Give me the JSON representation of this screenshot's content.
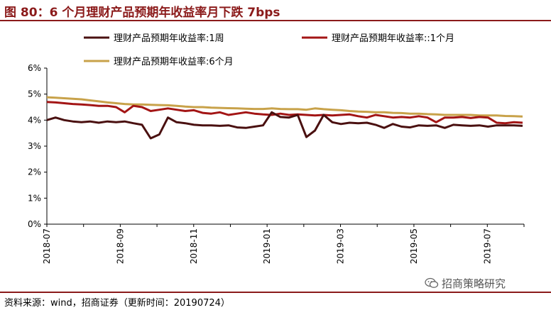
{
  "header": {
    "title": "图 80：6 个月理财产品预期年收益率月下跌 7bps"
  },
  "footer": {
    "source": "资料来源：wind，招商证券（更新时间：20190724）"
  },
  "watermark": {
    "text": "招商策略研究",
    "icon": "wechat-icon"
  },
  "chart_data": {
    "type": "line",
    "title": "",
    "xlabel": "",
    "ylabel": "",
    "ylim": [
      0,
      6
    ],
    "yticks": [
      "0%",
      "1%",
      "2%",
      "3%",
      "4%",
      "5%",
      "6%"
    ],
    "x_tick_labels": [
      "2018-07",
      "2018-09",
      "2018-11",
      "2019-01",
      "2019-03",
      "2019-05",
      "2019-07"
    ],
    "x_start": "2018-07",
    "x_end": "2019-08",
    "grid": false,
    "legend": "top",
    "series": [
      {
        "name": "理财产品预期年收益率:1周",
        "color": "#4a1010",
        "values": [
          4.0,
          4.1,
          4.0,
          3.95,
          3.92,
          3.95,
          3.9,
          3.95,
          3.92,
          3.95,
          3.88,
          3.82,
          3.3,
          3.45,
          4.1,
          3.92,
          3.88,
          3.82,
          3.8,
          3.8,
          3.78,
          3.8,
          3.72,
          3.7,
          3.75,
          3.8,
          4.3,
          4.12,
          4.1,
          4.2,
          3.35,
          3.6,
          4.2,
          3.92,
          3.85,
          3.9,
          3.88,
          3.9,
          3.82,
          3.7,
          3.85,
          3.75,
          3.72,
          3.8,
          3.78,
          3.8,
          3.7,
          3.82,
          3.8,
          3.78,
          3.8,
          3.75,
          3.8,
          3.8,
          3.8,
          3.78
        ]
      },
      {
        "name": "理财产品预期年收益率::1个月",
        "color": "#a31515",
        "values": [
          4.7,
          4.68,
          4.65,
          4.62,
          4.6,
          4.58,
          4.55,
          4.55,
          4.5,
          4.3,
          4.55,
          4.5,
          4.35,
          4.4,
          4.45,
          4.4,
          4.35,
          4.38,
          4.28,
          4.25,
          4.3,
          4.2,
          4.25,
          4.3,
          4.25,
          4.22,
          4.2,
          4.25,
          4.2,
          4.22,
          4.2,
          4.18,
          4.2,
          4.18,
          4.2,
          4.22,
          4.15,
          4.1,
          4.2,
          4.15,
          4.1,
          4.12,
          4.1,
          4.15,
          4.1,
          3.92,
          4.1,
          4.1,
          4.12,
          4.08,
          4.12,
          4.1,
          3.9,
          3.88,
          3.92,
          3.9
        ]
      },
      {
        "name": "理财产品预期年收益率:6个月",
        "color": "#c8a24a",
        "values": [
          4.88,
          4.86,
          4.84,
          4.82,
          4.8,
          4.76,
          4.72,
          4.68,
          4.65,
          4.62,
          4.6,
          4.6,
          4.59,
          4.58,
          4.57,
          4.55,
          4.52,
          4.5,
          4.5,
          4.48,
          4.47,
          4.46,
          4.45,
          4.44,
          4.43,
          4.43,
          4.45,
          4.43,
          4.42,
          4.42,
          4.4,
          4.45,
          4.42,
          4.4,
          4.38,
          4.35,
          4.33,
          4.32,
          4.3,
          4.3,
          4.28,
          4.27,
          4.25,
          4.25,
          4.23,
          4.22,
          4.2,
          4.2,
          4.2,
          4.2,
          4.18,
          4.18,
          4.18,
          4.16,
          4.15,
          4.14
        ]
      }
    ]
  }
}
